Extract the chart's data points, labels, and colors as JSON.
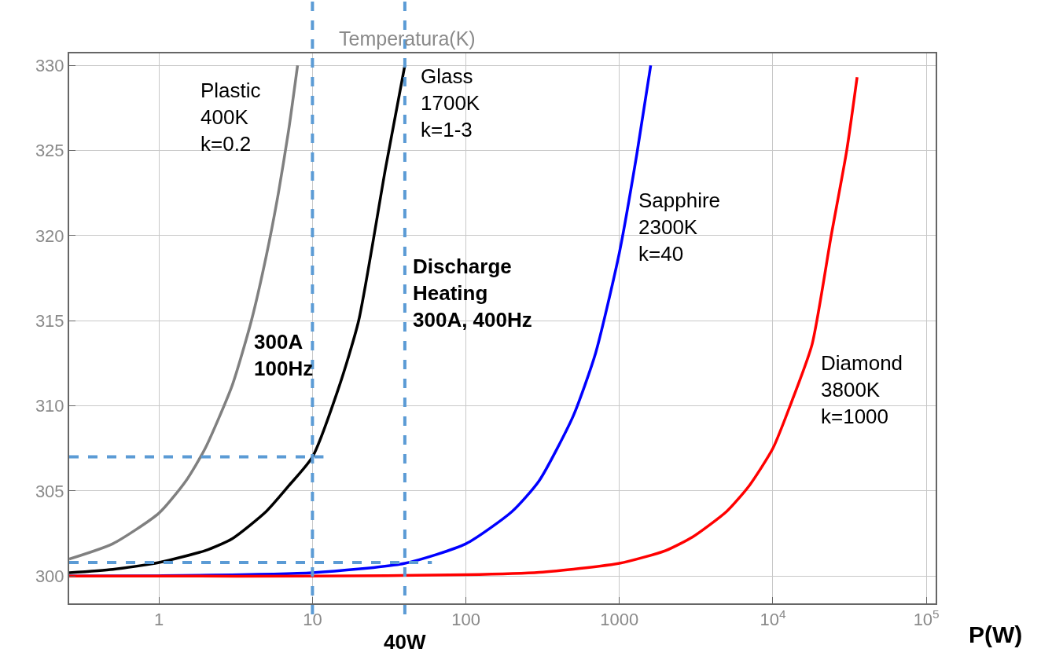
{
  "chart_data": {
    "type": "line",
    "ylabel": "Temperatura(K)",
    "xlabel": "P(W)",
    "log": "x",
    "grid": true,
    "line_style": "solid",
    "xlim": [
      0.26,
      115000
    ],
    "ylim": [
      298.4,
      330.7
    ],
    "xticks": [
      1,
      10,
      100,
      1000,
      {
        "value": 10000,
        "label": "10$^{4}$"
      },
      {
        "value": 100000,
        "label": "10$^{5}$"
      }
    ],
    "yticks": [
      300,
      305,
      310,
      315,
      320,
      325,
      330
    ],
    "series": [
      {
        "color": "#808080",
        "x": [
          0.26,
          0.5,
          1,
          1.5,
          2,
          3,
          4,
          5,
          6,
          7,
          8
        ],
        "values": [
          301.0,
          301.9,
          303.7,
          305.6,
          307.5,
          311.2,
          315,
          318.8,
          322.5,
          326.2,
          330
        ]
      },
      {
        "color": "#000000",
        "x": [
          0.26,
          0.5,
          1,
          2,
          3,
          5,
          7,
          10,
          15,
          20,
          30,
          40
        ],
        "values": [
          300.2,
          300.4,
          300.8,
          301.5,
          302.2,
          303.8,
          305.3,
          307.0,
          311.2,
          315,
          324,
          330
        ]
      },
      {
        "color": "#0000ff",
        "x": [
          0.26,
          1,
          10,
          40,
          100,
          200,
          300,
          500,
          700,
          1000,
          1300,
          1600
        ],
        "values": [
          300.0,
          300.02,
          300.2,
          300.75,
          301.9,
          303.8,
          305.6,
          309.4,
          313.1,
          319,
          324.8,
          330
        ]
      },
      {
        "color": "#ff0000",
        "x": [
          0.26,
          1,
          10,
          100,
          300,
          1000,
          2000,
          3000,
          5000,
          7000,
          10000,
          13200,
          18000,
          24000,
          30300,
          35400
        ],
        "values": [
          300.0,
          300.0,
          300.0,
          300.08,
          300.22,
          300.75,
          301.5,
          302.3,
          303.8,
          305.3,
          307.5,
          310.2,
          313.6,
          320,
          325,
          329.3
        ]
      },
      {
        "color": "#5b9bd5",
        "line_style": "dashed",
        "x": [
          0.26,
          11.8
        ],
        "values": [
          307,
          307
        ]
      },
      {
        "color": "#5b9bd5",
        "line_style": "dashed",
        "x": [
          0.26,
          60
        ],
        "values": [
          300.8,
          300.8
        ]
      }
    ],
    "ref_lines": [
      {
        "axis": "x",
        "value": 10,
        "color": "#5b9bd5",
        "line_style": "dashed"
      },
      {
        "axis": "x",
        "value": 40,
        "label": "40W",
        "color": "#5b9bd5",
        "line_style": "dashed"
      }
    ],
    "annotations": [
      "Plastic\n400K\nk=0.2",
      "Glass\n1700K\nk=1-3",
      "Discharge\nHeating\n300A, 400Hz",
      "300A\n100Hz",
      "Sapphire\n2300K\nk=40",
      "Diamond\n3800K\nk=1000"
    ]
  }
}
